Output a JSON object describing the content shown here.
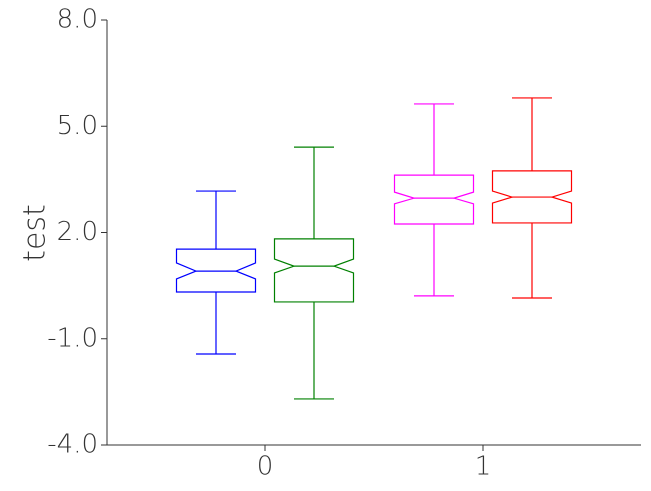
{
  "chart_data": {
    "type": "box",
    "ylabel": "test",
    "categories": [
      "0",
      "1"
    ],
    "ylim": [
      -4,
      8
    ],
    "yticks": [
      {
        "value": -4,
        "label": "-4.0"
      },
      {
        "value": -1,
        "label": "-1.0"
      },
      {
        "value": 2,
        "label": "2.0"
      },
      {
        "value": 5,
        "label": "5.0"
      },
      {
        "value": 8,
        "label": "8.0"
      }
    ],
    "groups": [
      [
        {
          "color": "#0000ff",
          "whislo": -1.43,
          "q1": 0.32,
          "notch_lo": 0.69,
          "med": 0.91,
          "notch_hi": 1.14,
          "q3": 1.53,
          "whishi": 3.17
        },
        {
          "color": "#008000",
          "whislo": -2.7,
          "q1": 0.04,
          "notch_lo": 0.86,
          "med": 1.05,
          "notch_hi": 1.25,
          "q3": 1.82,
          "whishi": 4.41
        }
      ],
      [
        {
          "color": "#ff00ff",
          "whislo": 0.21,
          "q1": 2.24,
          "notch_lo": 2.81,
          "med": 2.97,
          "notch_hi": 3.14,
          "q3": 3.62,
          "whishi": 5.63
        },
        {
          "color": "#ff0000",
          "whislo": 0.15,
          "q1": 2.27,
          "notch_lo": 2.83,
          "med": 3.0,
          "notch_hi": 3.17,
          "q3": 3.74,
          "whishi": 5.8
        }
      ]
    ]
  }
}
